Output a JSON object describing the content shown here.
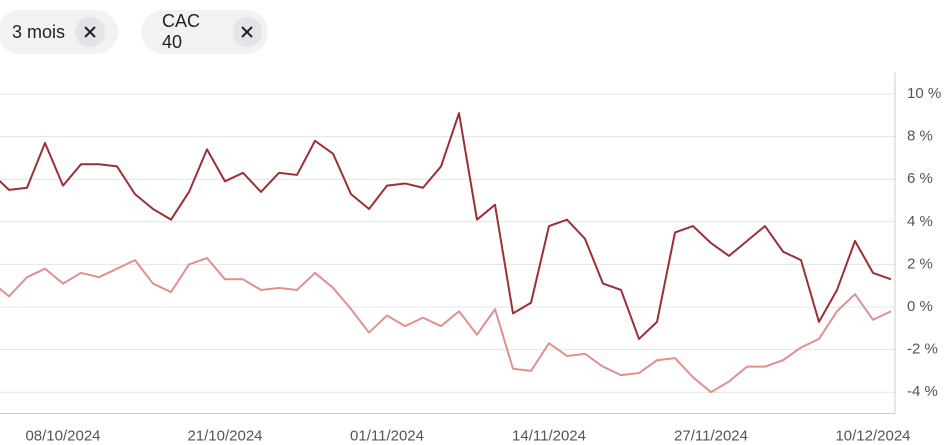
{
  "filters": [
    "3 mois",
    "CAC 40"
  ],
  "chart_data": {
    "type": "line",
    "categories": [
      null,
      null,
      null,
      null,
      "08/10/2024",
      null,
      null,
      null,
      null,
      null,
      null,
      null,
      null,
      "21/10/2024",
      null,
      null,
      null,
      null,
      null,
      null,
      null,
      null,
      "01/11/2024",
      null,
      null,
      null,
      null,
      null,
      null,
      null,
      null,
      "14/11/2024",
      null,
      null,
      null,
      null,
      null,
      null,
      null,
      null,
      "27/11/2024",
      null,
      null,
      null,
      null,
      null,
      null,
      null,
      null,
      "10/12/2024",
      null
    ],
    "series": [
      {
        "color": "#9b2f35",
        "values": [
          6.3,
          5.5,
          5.6,
          7.7,
          5.7,
          6.7,
          6.7,
          6.6,
          5.3,
          4.6,
          4.1,
          5.4,
          7.4,
          5.9,
          6.3,
          5.4,
          6.3,
          6.2,
          7.8,
          7.2,
          5.3,
          4.6,
          5.7,
          5.8,
          5.6,
          6.6,
          9.1,
          4.1,
          4.8,
          -0.3,
          0.2,
          3.8,
          4.1,
          3.2,
          1.1,
          0.8,
          -1.5,
          -0.7,
          3.5,
          3.8,
          3.0,
          2.4,
          3.1,
          3.8,
          2.6,
          2.2,
          -0.7,
          0.8,
          3.1,
          1.6,
          1.3
        ]
      },
      {
        "color": "#e0908f",
        "values": [
          1.2,
          0.5,
          1.4,
          1.8,
          1.1,
          1.6,
          1.4,
          1.8,
          2.2,
          1.1,
          0.7,
          2.0,
          2.3,
          1.3,
          1.3,
          0.8,
          0.9,
          0.8,
          1.6,
          0.9,
          -0.1,
          -1.2,
          -0.4,
          -0.9,
          -0.5,
          -0.9,
          -0.2,
          -1.3,
          -0.1,
          -2.9,
          -3.0,
          -1.7,
          -2.3,
          -2.2,
          -2.8,
          -3.2,
          -3.1,
          -2.5,
          -2.4,
          -3.3,
          -4.0,
          -3.5,
          -2.8,
          -2.8,
          -2.5,
          -1.9,
          -1.5,
          -0.2,
          0.6,
          -0.6,
          -0.2
        ]
      }
    ],
    "ylim": [
      -5,
      11
    ],
    "yticks": [
      {
        "value": 10,
        "label": "10 %"
      },
      {
        "value": 8,
        "label": "8 %"
      },
      {
        "value": 6,
        "label": "6 %"
      },
      {
        "value": 4,
        "label": "4 %"
      },
      {
        "value": 2,
        "label": "2 %"
      },
      {
        "value": 0,
        "label": "0 %"
      },
      {
        "value": -2,
        "label": "-2 %"
      },
      {
        "value": -4,
        "label": "-4 %"
      }
    ],
    "grid": true,
    "y_axis_side": "right"
  }
}
